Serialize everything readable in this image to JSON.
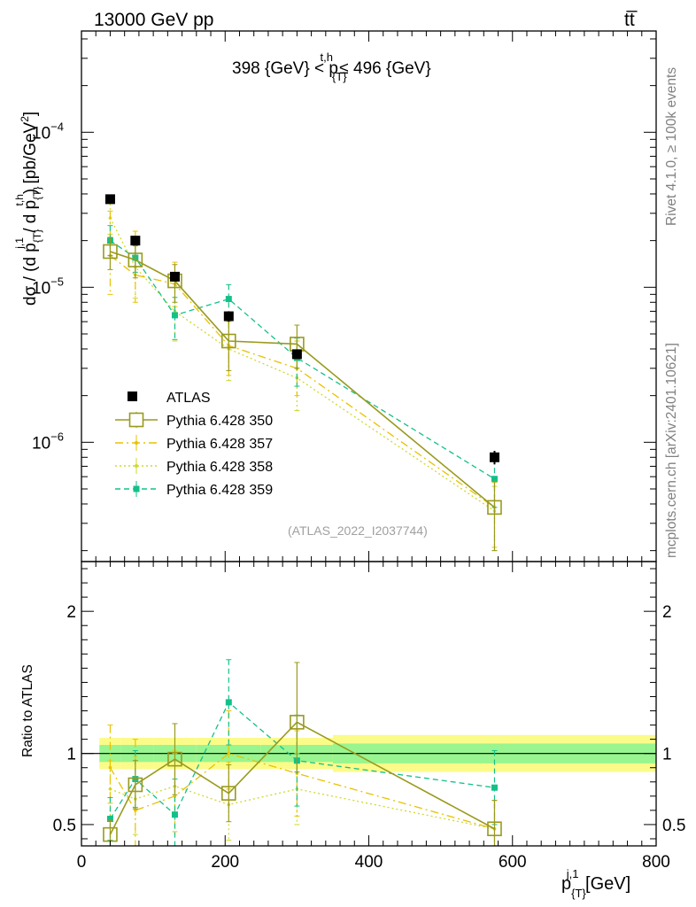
{
  "header": {
    "left": "13000 GeV pp",
    "right": "tt̅"
  },
  "side_labels": {
    "rivet": "Rivet 4.1.0, ≥ 100k events",
    "mcplots": "mcplots.cern.ch [arXiv:2401.10621]"
  },
  "colors": {
    "ATLAS": "#000000",
    "Pythia 6.428 350": "#999a1d",
    "Pythia 6.428 357": "#e8c200",
    "Pythia 6.428 358": "#cfd92b",
    "Pythia 6.428 359": "#13c08a",
    "band_inner": "#99f58f",
    "band_outer": "#fbfb89"
  },
  "chart_data": [
    {
      "id": "main",
      "type": "scatter",
      "yscale": "log",
      "title_parts": {
        "pre": "398 {GeV} < p",
        "sup": "t,h",
        "sub": "{T}",
        "post": " ≤ 496 {GeV}"
      },
      "ylabel": "dσ / (d p{T}j,1 / d p{T}t,h) [pb/GeV²]",
      "ylabel_parts": {
        "a": "dσ / (d p",
        "a_sup": "j,1",
        "a_sub": "{T}",
        "b": " / d p",
        "b_sup": "t,h",
        "b_sub": "{T}",
        "c": ") [pb/GeV",
        "c_sup": "2",
        "d": "]"
      },
      "xlim": [
        0,
        800
      ],
      "ylim": [
        1.7e-07,
        0.00045
      ],
      "y_tick_labels": [
        {
          "value": 1e-06,
          "base": "10",
          "exp": "−6"
        },
        {
          "value": 1e-05,
          "base": "10",
          "exp": "−5"
        },
        {
          "value": 0.0001,
          "base": "10",
          "exp": "−4"
        }
      ],
      "x": [
        40,
        75,
        130,
        205,
        300,
        575
      ],
      "x_edges": [
        25,
        55,
        100,
        160,
        250,
        350,
        800
      ],
      "series": [
        {
          "name": "ATLAS",
          "style": "data",
          "values": [
            3.7e-05,
            2e-05,
            1.17e-05,
            6.5e-06,
            3.7e-06,
            8e-07
          ],
          "err_up": [
            2e-06,
            1.3e-06,
            8e-07,
            5e-07,
            2.5e-07,
            8e-08
          ],
          "err_dn": [
            2e-06,
            1.3e-06,
            8e-07,
            5e-07,
            2.5e-07,
            8e-08
          ]
        },
        {
          "name": "Pythia 6.428 350",
          "style": "solid-open-square",
          "values": [
            1.7e-05,
            1.5e-05,
            1.1e-05,
            4.5e-06,
            4.3e-06,
            3.8e-07
          ],
          "err_up": [
            4e-06,
            3.5e-06,
            3e-06,
            2e-06,
            1.4e-06,
            1.8e-07
          ],
          "err_dn": [
            4e-06,
            3.5e-06,
            3e-06,
            1.6e-06,
            1.3e-06,
            1.8e-07
          ]
        },
        {
          "name": "Pythia 6.428 357",
          "style": "dashdot",
          "values": [
            1.6e-05,
            1.2e-05,
            1.05e-05,
            4.2e-06,
            3e-06,
            3.8e-07
          ],
          "err_up": [
            1.5e-05,
            1.1e-05,
            4e-06,
            2e-06,
            1.5e-06,
            1.7e-07
          ],
          "err_dn": [
            7e-06,
            4e-06,
            3e-06,
            1.5e-06,
            1e-06,
            1.7e-07
          ]
        },
        {
          "name": "Pythia 6.428 358",
          "style": "dotted",
          "values": [
            2.8e-05,
            1.35e-05,
            7e-06,
            4e-06,
            2.6e-06,
            3.6e-07
          ],
          "err_up": [
            9e-06,
            6e-06,
            3e-06,
            2e-06,
            1e-06,
            1.6e-07
          ],
          "err_dn": [
            6e-06,
            5e-06,
            2.5e-06,
            1.5e-06,
            1e-06,
            1.6e-07
          ]
        },
        {
          "name": "Pythia 6.428 359",
          "style": "dashed-filled-square",
          "values": [
            2e-05,
            1.55e-05,
            6.6e-06,
            8.4e-06,
            3.5e-06,
            5.8e-07
          ],
          "err_up": [
            5e-06,
            4e-06,
            2e-06,
            2e-06,
            1.2e-06,
            2e-07
          ],
          "err_dn": [
            4e-06,
            3e-06,
            2e-06,
            2e-06,
            1.2e-06,
            2e-07
          ]
        }
      ],
      "annotation": "(ATLAS_2022_I2037744)",
      "legend": {
        "placement": "middle-left",
        "entries": [
          "ATLAS",
          "Pythia 6.428 350",
          "Pythia 6.428 357",
          "Pythia 6.428 358",
          "Pythia 6.428 359"
        ]
      }
    },
    {
      "id": "ratio",
      "type": "line",
      "ylabel": "Ratio to ATLAS",
      "xlabel_parts": {
        "pre": "p",
        "sup": "j,1",
        "sub": "{T}",
        "post": " [GeV]"
      },
      "xlim": [
        0,
        800
      ],
      "ylim": [
        0.35,
        2.35
      ],
      "x_ticks": [
        0,
        200,
        400,
        600,
        800
      ],
      "x_tick_labels": [
        "0",
        "200",
        "400",
        "600",
        "800"
      ],
      "y_ticks": [
        0.5,
        1,
        2
      ],
      "y_tick_labels": [
        "0.5",
        "1",
        "2"
      ],
      "x": [
        40,
        75,
        130,
        205,
        300,
        575
      ],
      "band": {
        "edges": [
          25,
          55,
          100,
          160,
          250,
          350,
          800
        ],
        "inner": [
          0.06,
          0.06,
          0.06,
          0.06,
          0.06,
          0.07
        ],
        "outer": [
          0.11,
          0.11,
          0.11,
          0.11,
          0.11,
          0.13
        ]
      },
      "series": [
        {
          "name": "Pythia 6.428 350",
          "values": [
            0.43,
            0.78,
            0.96,
            0.72,
            1.22,
            0.47
          ],
          "err_up": [
            0.1,
            0.17,
            0.25,
            0.2,
            0.42,
            0.2
          ],
          "err_dn": [
            0.1,
            0.17,
            0.25,
            0.2,
            0.35,
            0.2
          ]
        },
        {
          "name": "Pythia 6.428 357",
          "values": [
            0.9,
            0.6,
            0.7,
            1.0,
            0.86,
            0.47
          ],
          "err_up": [
            0.3,
            0.5,
            0.3,
            0.3,
            0.3,
            0.2
          ],
          "err_dn": [
            0.25,
            0.25,
            0.25,
            0.25,
            0.3,
            0.2
          ]
        },
        {
          "name": "Pythia 6.428 358",
          "values": [
            0.75,
            0.68,
            0.77,
            0.64,
            0.75,
            0.47
          ],
          "err_up": [
            0.2,
            0.3,
            0.25,
            0.3,
            0.25,
            0.2
          ],
          "err_dn": [
            0.2,
            0.25,
            0.2,
            0.25,
            0.25,
            0.2
          ]
        },
        {
          "name": "Pythia 6.428 359",
          "values": [
            0.54,
            0.82,
            0.57,
            1.36,
            0.95,
            0.76
          ],
          "err_up": [
            0.15,
            0.2,
            0.25,
            0.3,
            0.32,
            0.26
          ],
          "err_dn": [
            0.15,
            0.2,
            0.25,
            0.3,
            0.32,
            0.26
          ]
        }
      ]
    }
  ]
}
